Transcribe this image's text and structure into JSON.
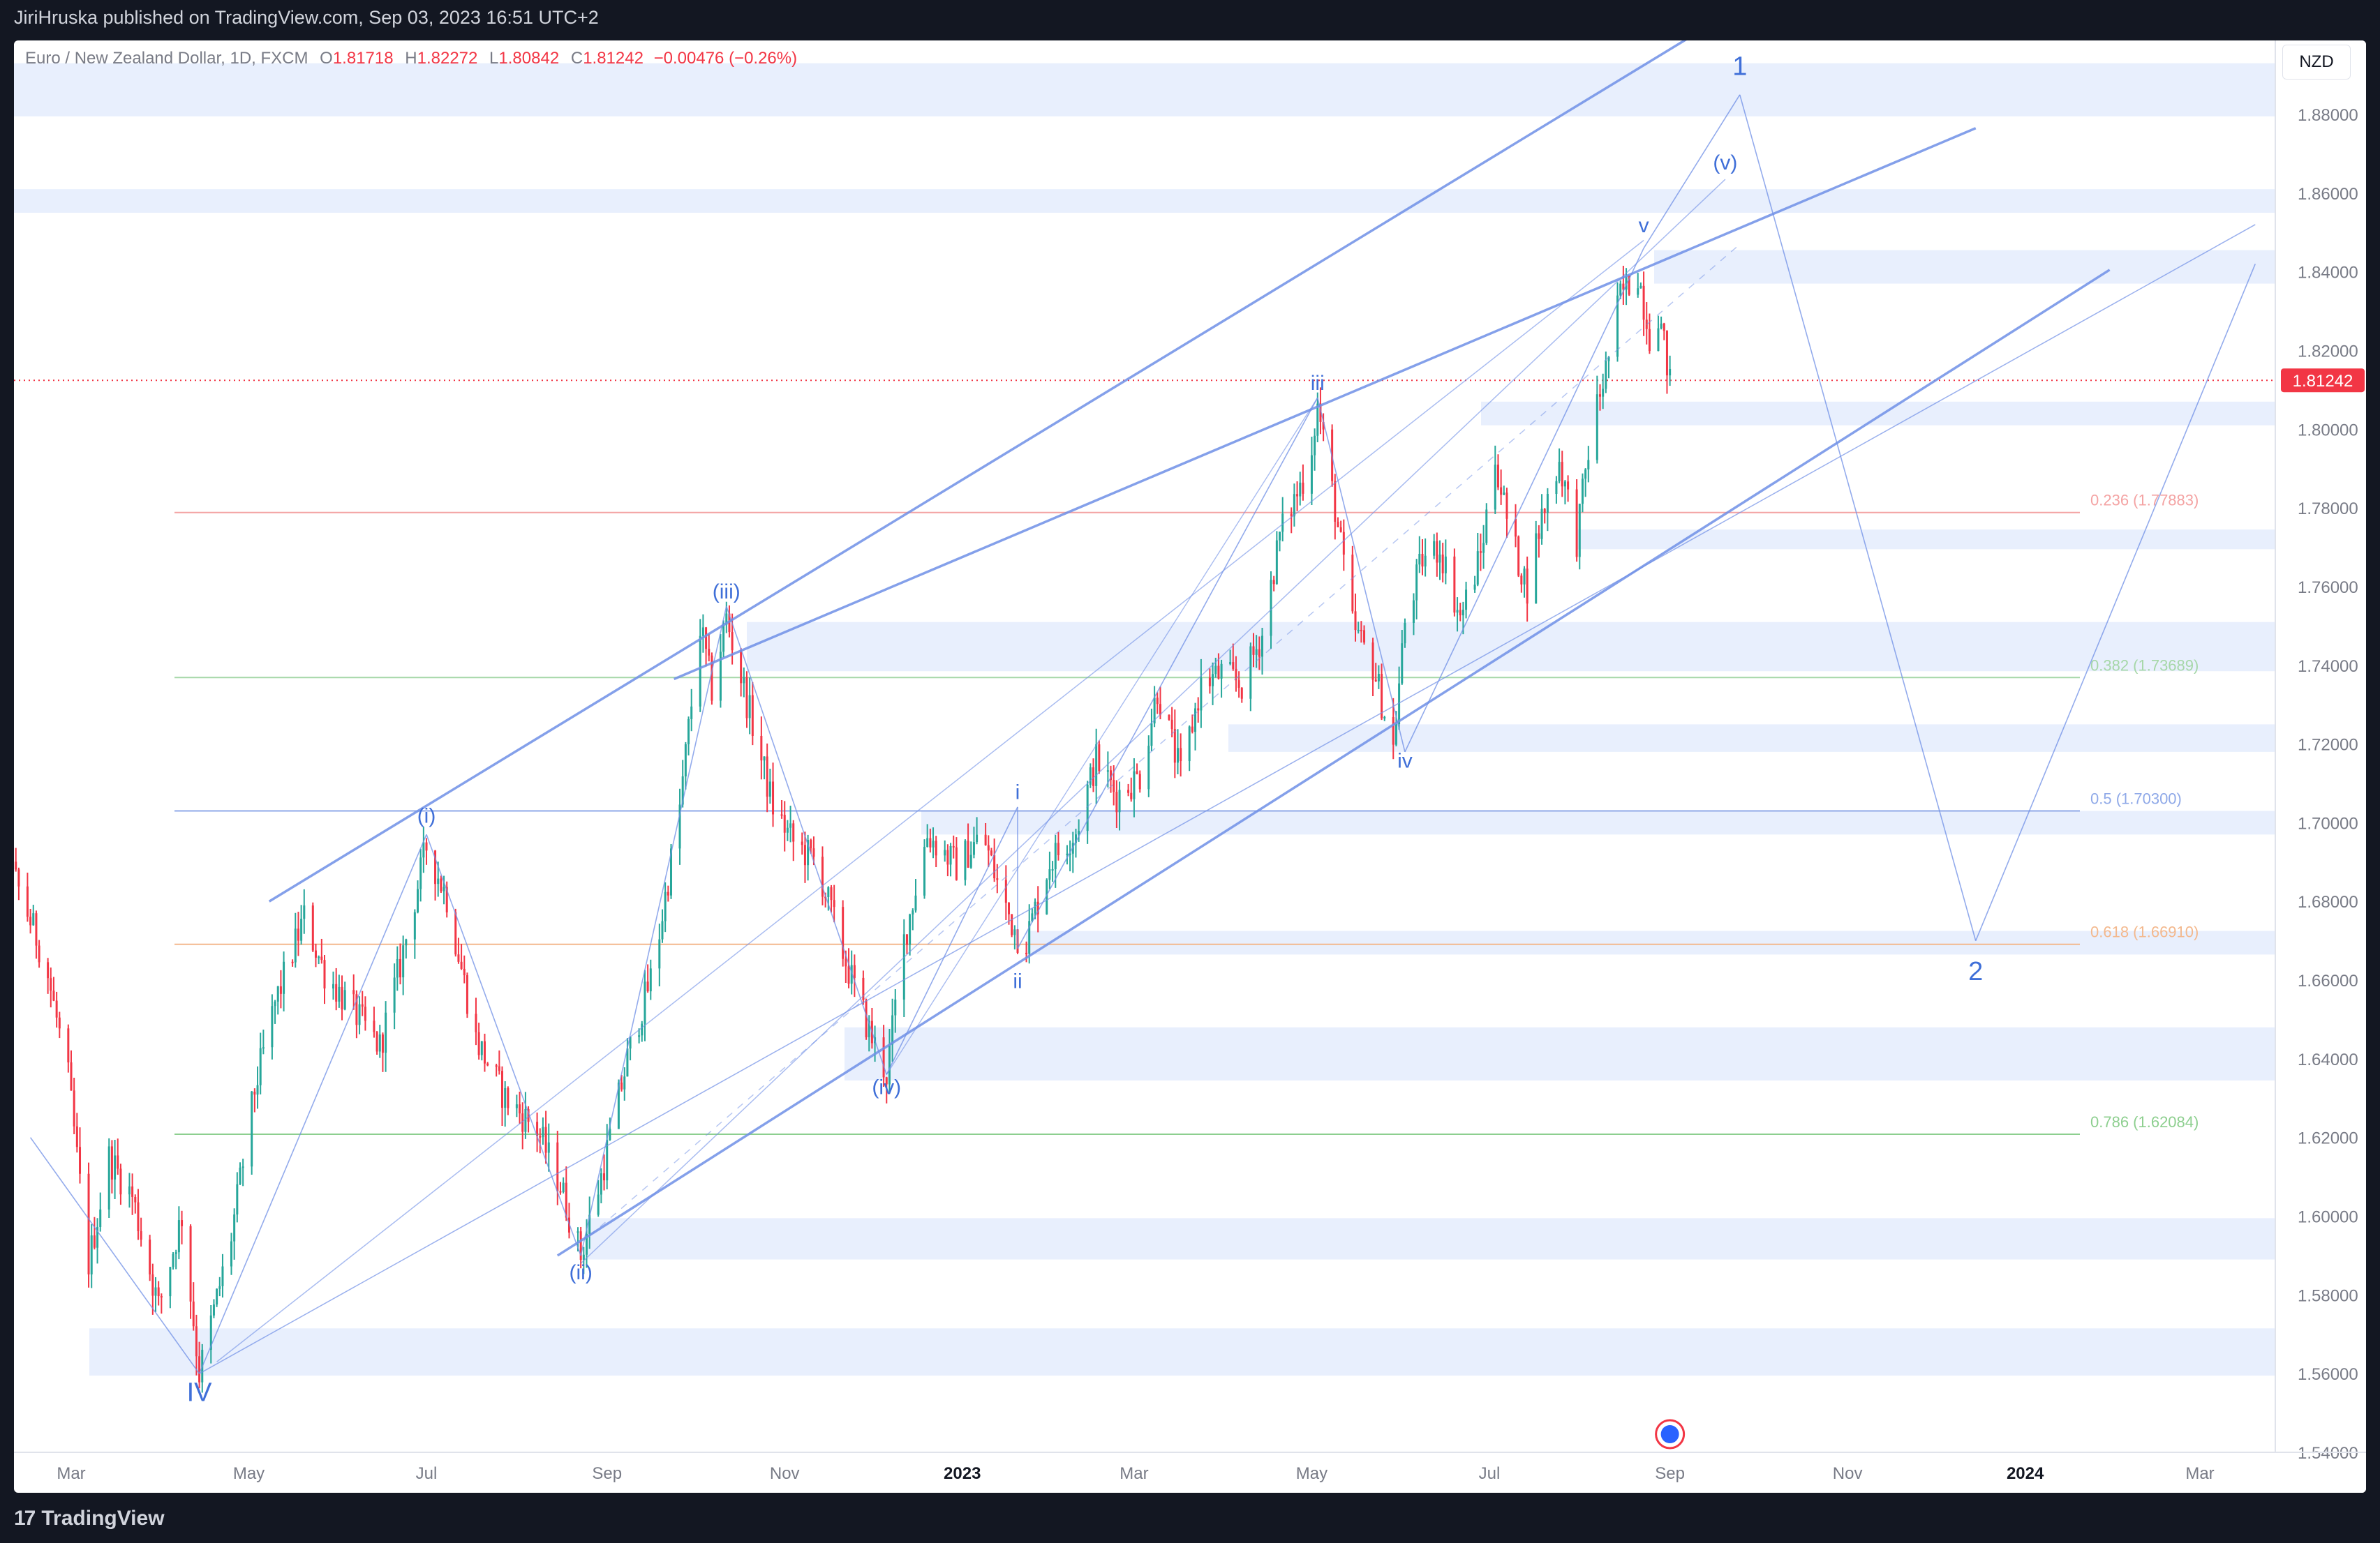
{
  "publisher": "JiriHruska published on TradingView.com, Sep 03, 2023 16:51 UTC+2",
  "brand": "TradingView",
  "legend": {
    "symbol": "Euro / New Zealand Dollar, 1D, FXCM",
    "open_label": "O",
    "open": "1.81718",
    "high_label": "H",
    "high": "1.82272",
    "low_label": "L",
    "low": "1.80842",
    "close_label": "C",
    "close": "1.81242",
    "change": "−0.00476 (−0.26%)"
  },
  "currency": "NZD",
  "colors": {
    "up": "#26a69a",
    "down": "#f23645",
    "wave": "#6f8fe6",
    "zone": "#e8effd",
    "axis_text": "#787b86",
    "fib_0236": "#f4a3a3",
    "fib_0382": "#a6d7a8",
    "fib_05": "#8fa9e8",
    "fib_0618": "#f3b88d",
    "fib_0786": "#8dcf8f"
  },
  "chart_data": {
    "type": "candlestick",
    "symbol": "EUR/NZD",
    "timeframe": "1D",
    "last_price": "1.81242",
    "y_ticks": [
      "1.88000",
      "1.86000",
      "1.84000",
      "1.82000",
      "1.80000",
      "1.78000",
      "1.76000",
      "1.74000",
      "1.72000",
      "1.70000",
      "1.68000",
      "1.66000",
      "1.64000",
      "1.62000",
      "1.60000",
      "1.58000",
      "1.56000",
      "1.54000"
    ],
    "x_ticks": [
      {
        "label": "Mar",
        "date": "2022-03-01"
      },
      {
        "label": "May",
        "date": "2022-05-01"
      },
      {
        "label": "Jul",
        "date": "2022-07-01"
      },
      {
        "label": "Sep",
        "date": "2022-09-01"
      },
      {
        "label": "Nov",
        "date": "2022-11-01"
      },
      {
        "label": "2023",
        "date": "2023-01-01"
      },
      {
        "label": "Mar",
        "date": "2023-03-01"
      },
      {
        "label": "May",
        "date": "2023-05-01"
      },
      {
        "label": "Jul",
        "date": "2023-07-01"
      },
      {
        "label": "Sep",
        "date": "2023-09-01"
      },
      {
        "label": "Nov",
        "date": "2023-11-01"
      },
      {
        "label": "2024",
        "date": "2024-01-01"
      },
      {
        "label": "Mar",
        "date": "2024-03-01"
      }
    ],
    "price_path": [
      [
        "2022-01-20",
        1.712
      ],
      [
        "2022-02-01",
        1.705
      ],
      [
        "2022-02-10",
        1.685
      ],
      [
        "2022-02-20",
        1.665
      ],
      [
        "2022-02-28",
        1.635
      ],
      [
        "2022-03-07",
        1.588
      ],
      [
        "2022-03-14",
        1.615
      ],
      [
        "2022-03-22",
        1.605
      ],
      [
        "2022-03-31",
        1.577
      ],
      [
        "2022-04-08",
        1.6
      ],
      [
        "2022-04-14",
        1.56
      ],
      [
        "2022-04-25",
        1.595
      ],
      [
        "2022-05-03",
        1.632
      ],
      [
        "2022-05-10",
        1.654
      ],
      [
        "2022-05-20",
        1.676
      ],
      [
        "2022-05-27",
        1.662
      ],
      [
        "2022-06-06",
        1.652
      ],
      [
        "2022-06-15",
        1.643
      ],
      [
        "2022-06-22",
        1.664
      ],
      [
        "2022-07-01",
        1.694
      ],
      [
        "2022-07-08",
        1.681
      ],
      [
        "2022-07-18",
        1.645
      ],
      [
        "2022-07-28",
        1.63
      ],
      [
        "2022-08-08",
        1.622
      ],
      [
        "2022-08-16",
        1.608
      ],
      [
        "2022-08-23",
        1.59
      ],
      [
        "2022-08-30",
        1.61
      ],
      [
        "2022-09-08",
        1.64
      ],
      [
        "2022-09-17",
        1.663
      ],
      [
        "2022-09-26",
        1.704
      ],
      [
        "2022-10-03",
        1.75
      ],
      [
        "2022-10-07",
        1.734
      ],
      [
        "2022-10-12",
        1.752
      ],
      [
        "2022-10-20",
        1.728
      ],
      [
        "2022-10-28",
        1.704
      ],
      [
        "2022-11-04",
        1.695
      ],
      [
        "2022-11-12",
        1.69
      ],
      [
        "2022-11-21",
        1.667
      ],
      [
        "2022-11-30",
        1.647
      ],
      [
        "2022-12-06",
        1.636
      ],
      [
        "2022-12-12",
        1.67
      ],
      [
        "2022-12-20",
        1.697
      ],
      [
        "2022-12-30",
        1.689
      ],
      [
        "2023-01-08",
        1.697
      ],
      [
        "2023-01-15",
        1.68
      ],
      [
        "2023-01-22",
        1.668
      ],
      [
        "2023-01-31",
        1.69
      ],
      [
        "2023-02-09",
        1.698
      ],
      [
        "2023-02-16",
        1.716
      ],
      [
        "2023-02-23",
        1.707
      ],
      [
        "2023-03-03",
        1.712
      ],
      [
        "2023-03-09",
        1.734
      ],
      [
        "2023-03-17",
        1.712
      ],
      [
        "2023-03-24",
        1.735
      ],
      [
        "2023-03-31",
        1.738
      ],
      [
        "2023-04-07",
        1.735
      ],
      [
        "2023-04-14",
        1.748
      ],
      [
        "2023-04-20",
        1.773
      ],
      [
        "2023-04-30",
        1.791
      ],
      [
        "2023-05-03",
        1.806
      ],
      [
        "2023-05-09",
        1.78
      ],
      [
        "2023-05-15",
        1.75
      ],
      [
        "2023-05-22",
        1.74
      ],
      [
        "2023-05-29",
        1.719
      ],
      [
        "2023-06-02",
        1.751
      ],
      [
        "2023-06-08",
        1.767
      ],
      [
        "2023-06-14",
        1.77
      ],
      [
        "2023-06-21",
        1.752
      ],
      [
        "2023-06-28",
        1.768
      ],
      [
        "2023-07-03",
        1.793
      ],
      [
        "2023-07-08",
        1.773
      ],
      [
        "2023-07-14",
        1.76
      ],
      [
        "2023-07-19",
        1.778
      ],
      [
        "2023-07-25",
        1.792
      ],
      [
        "2023-07-31",
        1.772
      ],
      [
        "2023-08-05",
        1.8
      ],
      [
        "2023-08-10",
        1.815
      ],
      [
        "2023-08-15",
        1.834
      ],
      [
        "2023-08-21",
        1.84
      ],
      [
        "2023-08-25",
        1.824
      ],
      [
        "2023-08-28",
        1.83
      ],
      [
        "2023-09-01",
        1.812
      ]
    ],
    "wave_labels": [
      {
        "text": "IV",
        "date": "2022-04-14",
        "price": 1.553
      },
      {
        "text": "(i)",
        "date": "2022-07-01",
        "price": 1.7
      },
      {
        "text": "(ii)",
        "date": "2022-08-23",
        "price": 1.584
      },
      {
        "text": "(iii)",
        "date": "2022-10-12",
        "price": 1.757
      },
      {
        "text": "(iv)",
        "date": "2022-12-06",
        "price": 1.631
      },
      {
        "text": "i",
        "date": "2023-01-20",
        "price": 1.706
      },
      {
        "text": "ii",
        "date": "2023-01-20",
        "price": 1.658
      },
      {
        "text": "iii",
        "date": "2023-05-03",
        "price": 1.81
      },
      {
        "text": "iv",
        "date": "2023-06-02",
        "price": 1.714
      },
      {
        "text": "v",
        "date": "2023-08-23",
        "price": 1.85
      },
      {
        "text": "(v)",
        "date": "2023-09-20",
        "price": 1.866
      },
      {
        "text": "1",
        "date": "2023-09-25",
        "price": 1.89
      },
      {
        "text": "2",
        "date": "2023-12-15",
        "price": 1.66
      }
    ],
    "fib_levels": [
      {
        "label": "0.236 (1.77883)",
        "value": 1.77883
      },
      {
        "label": "0.382 (1.73689)",
        "value": 1.73689
      },
      {
        "label": "0.5 (1.70300)",
        "value": 1.703
      },
      {
        "label": "0.618 (1.66910)",
        "value": 1.6691
      },
      {
        "label": "0.786 (1.62084)",
        "value": 1.62084
      }
    ]
  }
}
